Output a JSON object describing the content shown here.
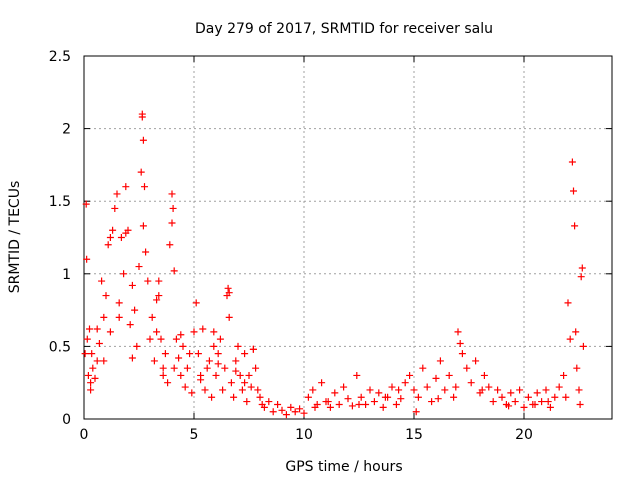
{
  "chart_data": {
    "type": "scatter",
    "title": "Day 279 of 2017, SRMTID for receiver salu",
    "xlabel": "GPS time / hours",
    "ylabel": "SRMTID / TECUs",
    "xlim": [
      0,
      24
    ],
    "ylim": [
      0,
      2.5
    ],
    "xticks": [
      0,
      5,
      10,
      15,
      20
    ],
    "yticks": [
      0,
      0.5,
      1,
      1.5,
      2,
      2.5
    ],
    "xtick_labels": [
      "0",
      "5",
      "10",
      "15",
      "20"
    ],
    "ytick_labels": [
      "0",
      "0.5",
      "1",
      "1.5",
      "2",
      "2.5"
    ],
    "grid": true,
    "marker": "+",
    "color": "#ff0000",
    "series": [
      {
        "name": "SRMTID",
        "x": [
          0.05,
          0.1,
          0.12,
          0.15,
          0.2,
          0.25,
          0.3,
          0.35,
          0.4,
          0.5,
          0.6,
          0.7,
          0.8,
          0.9,
          1.0,
          1.1,
          1.2,
          1.3,
          1.4,
          1.5,
          1.6,
          1.7,
          1.8,
          1.9,
          2.0,
          2.1,
          2.2,
          2.3,
          2.4,
          2.5,
          2.6,
          2.65,
          2.7,
          2.75,
          2.8,
          2.9,
          3.0,
          3.1,
          3.2,
          3.3,
          3.4,
          3.5,
          3.6,
          3.7,
          3.8,
          3.9,
          4.0,
          4.05,
          4.1,
          4.2,
          4.3,
          4.4,
          4.5,
          4.6,
          4.7,
          4.8,
          4.9,
          5.0,
          5.1,
          5.2,
          5.3,
          5.4,
          5.5,
          5.6,
          5.7,
          5.8,
          5.9,
          6.0,
          6.1,
          6.2,
          6.3,
          6.4,
          6.5,
          6.55,
          6.6,
          6.7,
          6.8,
          6.9,
          7.0,
          7.1,
          7.2,
          7.3,
          7.4,
          7.5,
          7.6,
          7.7,
          7.8,
          7.9,
          8.0,
          8.2,
          8.4,
          8.6,
          8.8,
          9.0,
          9.2,
          9.4,
          9.6,
          9.8,
          10.0,
          10.2,
          10.4,
          10.6,
          10.8,
          11.0,
          11.2,
          11.4,
          11.6,
          11.8,
          12.0,
          12.2,
          12.4,
          12.6,
          12.8,
          13.0,
          13.2,
          13.4,
          13.6,
          13.8,
          14.0,
          14.2,
          14.4,
          14.6,
          14.8,
          15.0,
          15.2,
          15.4,
          15.6,
          15.8,
          16.0,
          16.2,
          16.4,
          16.6,
          16.8,
          17.0,
          17.1,
          17.2,
          17.4,
          17.6,
          17.8,
          18.0,
          18.2,
          18.4,
          18.6,
          18.8,
          19.0,
          19.2,
          19.4,
          19.6,
          19.8,
          20.0,
          20.2,
          20.4,
          20.6,
          20.8,
          21.0,
          21.2,
          21.4,
          21.6,
          21.8,
          22.0,
          22.1,
          22.2,
          22.25,
          22.3,
          22.4,
          22.5,
          22.6,
          22.65,
          22.7,
          2.65,
          2.7,
          3.3,
          3.4,
          4.0,
          4.1,
          0.6,
          1.2,
          1.9,
          5.9,
          6.6,
          7.7,
          0.3,
          0.9,
          1.6,
          2.2,
          3.6,
          4.4,
          5.3,
          6.1,
          6.9,
          7.3,
          8.1,
          10.5,
          11.1,
          12.5,
          13.7,
          14.3,
          15.1,
          16.1,
          16.9,
          18.1,
          19.3,
          20.5,
          21.1,
          21.9,
          22.35,
          22.55
        ],
        "y": [
          0.45,
          1.48,
          1.1,
          0.55,
          0.3,
          0.62,
          0.25,
          0.45,
          0.35,
          0.28,
          0.4,
          0.52,
          0.95,
          0.7,
          0.85,
          1.2,
          0.6,
          1.3,
          1.45,
          1.55,
          0.8,
          1.25,
          1.0,
          1.6,
          1.3,
          0.65,
          0.42,
          0.75,
          0.5,
          1.05,
          1.7,
          2.1,
          1.92,
          1.6,
          1.15,
          0.95,
          0.55,
          0.7,
          0.4,
          0.6,
          0.85,
          0.55,
          0.3,
          0.45,
          0.25,
          1.2,
          1.55,
          1.45,
          0.35,
          0.55,
          0.42,
          0.3,
          0.5,
          0.22,
          0.35,
          0.45,
          0.18,
          0.6,
          0.8,
          0.45,
          0.3,
          0.62,
          0.2,
          0.35,
          0.4,
          0.15,
          0.5,
          0.3,
          0.45,
          0.55,
          0.2,
          0.35,
          0.85,
          0.9,
          0.7,
          0.25,
          0.15,
          0.4,
          0.5,
          0.3,
          0.2,
          0.45,
          0.12,
          0.3,
          0.22,
          0.48,
          0.35,
          0.2,
          0.15,
          0.08,
          0.12,
          0.05,
          0.1,
          0.06,
          0.03,
          0.08,
          0.05,
          0.07,
          0.04,
          0.15,
          0.2,
          0.1,
          0.25,
          0.12,
          0.08,
          0.18,
          0.1,
          0.22,
          0.14,
          0.09,
          0.3,
          0.15,
          0.1,
          0.2,
          0.12,
          0.18,
          0.08,
          0.15,
          0.22,
          0.1,
          0.14,
          0.25,
          0.3,
          0.2,
          0.15,
          0.35,
          0.22,
          0.12,
          0.28,
          0.4,
          0.2,
          0.3,
          0.15,
          0.6,
          0.52,
          0.45,
          0.35,
          0.25,
          0.4,
          0.18,
          0.3,
          0.22,
          0.12,
          0.2,
          0.15,
          0.1,
          0.18,
          0.12,
          0.2,
          0.08,
          0.15,
          0.1,
          0.18,
          0.12,
          0.2,
          0.08,
          0.15,
          0.22,
          0.3,
          0.8,
          0.55,
          1.77,
          1.57,
          1.33,
          0.35,
          0.2,
          0.98,
          1.04,
          0.5,
          2.08,
          1.33,
          0.82,
          0.95,
          1.35,
          1.02,
          0.62,
          1.25,
          1.28,
          0.6,
          0.87,
          0.48,
          0.2,
          0.4,
          0.7,
          0.92,
          0.35,
          0.58,
          0.27,
          0.38,
          0.33,
          0.25,
          0.1,
          0.08,
          0.12,
          0.1,
          0.15,
          0.2,
          0.05,
          0.14,
          0.22,
          0.2,
          0.09,
          0.1,
          0.12,
          0.15,
          0.6,
          0.1
        ]
      }
    ]
  }
}
